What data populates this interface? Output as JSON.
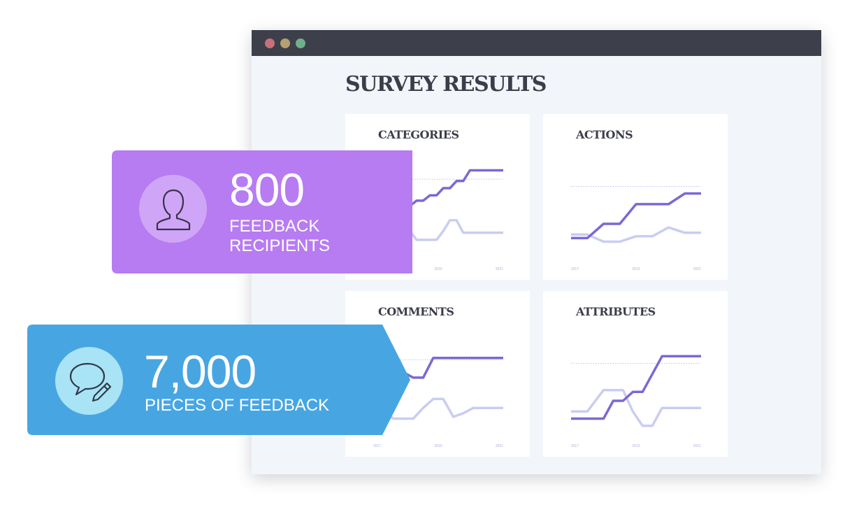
{
  "window": {
    "dots": [
      {
        "name": "close-dot",
        "color": "#c7707a"
      },
      {
        "name": "minimize-dot",
        "color": "#b5a070"
      },
      {
        "name": "maximize-dot",
        "color": "#6fb08a"
      }
    ],
    "title": "SURVEY RESULTS"
  },
  "colors": {
    "line_primary": "#7b68d6",
    "line_secondary": "#c9cdf0",
    "reference_line": "#bcc0e8",
    "tick_text": "#aeb0d8",
    "purple_badge": "#b77bf2",
    "purple_circle": "#cfa6f7",
    "blue_badge": "#47a6e2",
    "blue_circle": "#a9e3f6"
  },
  "cards": [
    {
      "id": "categories",
      "title": "CATEGORIES"
    },
    {
      "id": "actions",
      "title": "ACTIONS"
    },
    {
      "id": "comments",
      "title": "COMMENTS"
    },
    {
      "id": "attributes",
      "title": "ATTRIBUTES"
    }
  ],
  "chart_data": [
    {
      "type": "line",
      "title": "CATEGORIES",
      "x_ticks": [
        "2017",
        "2019",
        "2021"
      ],
      "x": [
        2017,
        2017.2,
        2017.5,
        2017.7,
        2017.9,
        2018.1,
        2018.3,
        2018.5,
        2018.7,
        2018.9,
        2019.1,
        2019.3,
        2019.5,
        2019.7,
        2019.9,
        2020.1,
        2020.3,
        2020.5,
        2020.7,
        2020.9
      ],
      "series": [
        {
          "values": [
            2.2,
            2.2,
            2.6,
            2.6,
            3.0,
            3.0,
            3.3,
            3.3,
            3.6,
            3.6,
            4.0,
            4.0,
            4.4,
            4.4,
            5.0,
            5.0,
            5.0,
            5.0,
            5.0,
            5.0
          ]
        },
        {
          "values": [
            2.4,
            2.4,
            2.2,
            2.2,
            1.6,
            1.6,
            1.1,
            1.1,
            1.1,
            1.1,
            1.6,
            2.2,
            2.2,
            1.5,
            1.5,
            1.5,
            1.5,
            1.5,
            1.5,
            1.5
          ]
        }
      ],
      "reference_y": 4.5,
      "ylim": [
        0,
        6
      ]
    },
    {
      "type": "line",
      "title": "ACTIONS",
      "x_ticks": [
        "2017",
        "2019",
        "2021"
      ],
      "x": [
        2017,
        2017.5,
        2018,
        2018.5,
        2019,
        2019.5,
        2020,
        2020.5,
        2021
      ],
      "series": [
        {
          "values": [
            1.2,
            1.2,
            2.0,
            2.0,
            3.1,
            3.1,
            3.1,
            3.7,
            3.7
          ]
        },
        {
          "values": [
            1.4,
            1.4,
            1.0,
            1.0,
            1.3,
            1.3,
            1.8,
            1.5,
            1.5
          ]
        }
      ],
      "reference_y": 4.1,
      "ylim": [
        0,
        6
      ]
    },
    {
      "type": "line",
      "title": "COMMENTS",
      "x_ticks": [
        "2017",
        "2019",
        "2021"
      ],
      "x": [
        2017,
        2017.3,
        2017.6,
        2017.9,
        2018.2,
        2018.5,
        2018.8,
        2019.1,
        2019.4,
        2019.7,
        2020,
        2020.3,
        2020.6,
        2020.9
      ],
      "series": [
        {
          "values": [
            2.5,
            2.5,
            3.0,
            3.6,
            3.3,
            3.3,
            4.4,
            4.4,
            4.4,
            4.4,
            4.4,
            4.4,
            4.4,
            4.4
          ]
        },
        {
          "values": [
            2.0,
            1.5,
            1.0,
            1.0,
            1.0,
            1.6,
            2.1,
            2.1,
            1.1,
            1.3,
            1.6,
            1.6,
            1.6,
            1.6
          ]
        }
      ],
      "reference_y": 4.3,
      "ylim": [
        0,
        6
      ]
    },
    {
      "type": "line",
      "title": "ATTRIBUTES",
      "x_ticks": [
        "2017",
        "2019",
        "2021"
      ],
      "x": [
        2017,
        2017.5,
        2018,
        2018.3,
        2018.6,
        2018.9,
        2019.2,
        2019.5,
        2019.8,
        2020.1,
        2020.4,
        2020.7,
        2021
      ],
      "series": [
        {
          "values": [
            1.0,
            1.0,
            1.0,
            2.0,
            2.0,
            2.5,
            2.5,
            3.5,
            4.5,
            4.5,
            4.5,
            4.5,
            4.5
          ]
        },
        {
          "values": [
            1.4,
            1.4,
            2.6,
            2.6,
            2.6,
            1.4,
            0.6,
            0.6,
            1.6,
            1.6,
            1.6,
            1.6,
            1.6
          ]
        }
      ],
      "reference_y": 4.1,
      "ylim": [
        0,
        6
      ]
    }
  ],
  "badges": [
    {
      "id": "recipients",
      "number": "800",
      "label_line1": "FEEDBACK",
      "label_line2": "RECIPIENTS",
      "icon": "user-icon"
    },
    {
      "id": "feedback",
      "number": "7,000",
      "label_line1": "PIECES OF FEEDBACK",
      "icon": "chat-pencil-icon"
    }
  ]
}
